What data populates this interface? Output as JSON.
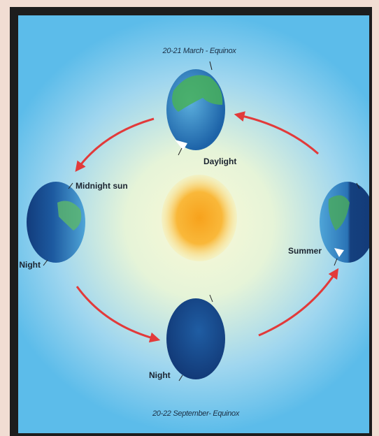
{
  "diagram": {
    "top_caption": "20-21 March - Equinox",
    "bottom_caption": "20-22 September- Equinox",
    "labels": {
      "daylight": "Daylight",
      "midnight_sun": "Midnight sun",
      "left_night": "Night",
      "summer": "Summer",
      "bottom_night": "Night"
    }
  }
}
